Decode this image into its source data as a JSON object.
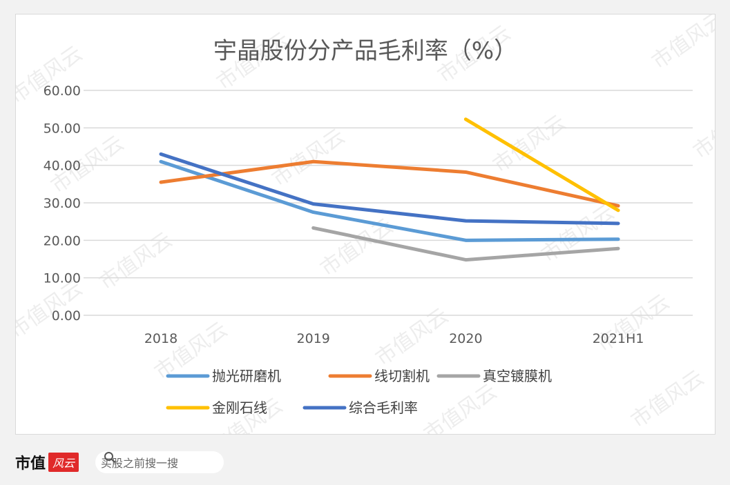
{
  "footer": {
    "brand": "市值",
    "badge": "风云",
    "search_text": "买股之前搜一搜"
  },
  "watermark": "市值风云",
  "chart_data": {
    "type": "line",
    "title": "宇晶股份分产品毛利率（%）",
    "categories": [
      "2018",
      "2019",
      "2020",
      "2021H1"
    ],
    "ylim": [
      0,
      60
    ],
    "yticks": [
      "0.00",
      "10.00",
      "20.00",
      "30.00",
      "40.00",
      "50.00",
      "60.00"
    ],
    "series": [
      {
        "name": "抛光研磨机",
        "color": "#5b9bd5",
        "values": [
          41.0,
          27.5,
          20.0,
          20.3
        ]
      },
      {
        "name": "线切割机",
        "color": "#ed7d31",
        "values": [
          35.5,
          41.0,
          38.2,
          29.2
        ]
      },
      {
        "name": "真空镀膜机",
        "color": "#a5a5a5",
        "values": [
          null,
          23.3,
          14.8,
          17.8
        ]
      },
      {
        "name": "金刚石线",
        "color": "#ffc000",
        "values": [
          null,
          null,
          52.3,
          28.0
        ]
      },
      {
        "name": "综合毛利率",
        "color": "#4472c4",
        "values": [
          43.0,
          29.7,
          25.2,
          24.5
        ]
      }
    ]
  }
}
